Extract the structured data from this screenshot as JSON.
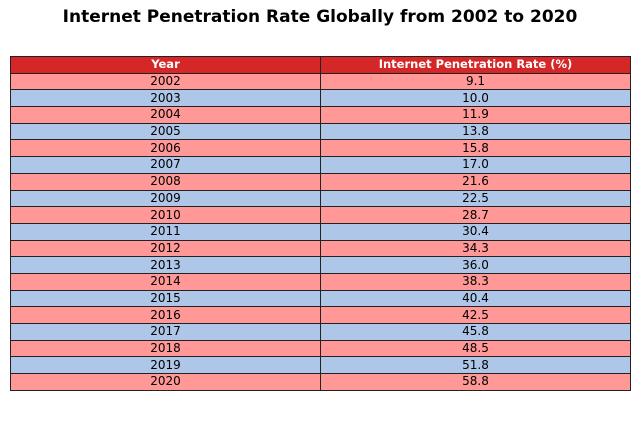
{
  "chart_data": {
    "type": "table",
    "title": "Internet Penetration Rate Globally from 2002 to 2020",
    "columns": [
      "Year",
      "Internet Penetration Rate (%)"
    ],
    "rows": [
      [
        "2002",
        "9.1"
      ],
      [
        "2003",
        "10.0"
      ],
      [
        "2004",
        "11.9"
      ],
      [
        "2005",
        "13.8"
      ],
      [
        "2006",
        "15.8"
      ],
      [
        "2007",
        "17.0"
      ],
      [
        "2008",
        "21.6"
      ],
      [
        "2009",
        "22.5"
      ],
      [
        "2010",
        "28.7"
      ],
      [
        "2011",
        "30.4"
      ],
      [
        "2012",
        "34.3"
      ],
      [
        "2013",
        "36.0"
      ],
      [
        "2014",
        "38.3"
      ],
      [
        "2015",
        "40.4"
      ],
      [
        "2016",
        "42.5"
      ],
      [
        "2017",
        "45.8"
      ],
      [
        "2018",
        "48.5"
      ],
      [
        "2019",
        "51.8"
      ],
      [
        "2020",
        "58.8"
      ]
    ],
    "header_color": "#d62728",
    "row_colors": [
      "#ff9896",
      "#aec7e8"
    ]
  }
}
